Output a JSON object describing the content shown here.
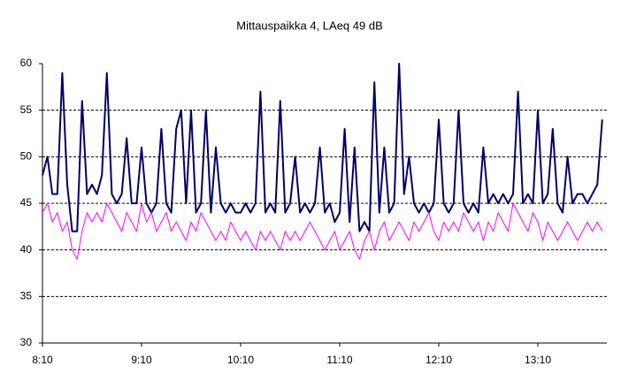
{
  "chart_data": {
    "type": "line",
    "title": "Mittauspaikka 4, LAeq 49 dB",
    "categories": [
      "8:10",
      null,
      null,
      null,
      null,
      null,
      null,
      null,
      null,
      null,
      null,
      null,
      null,
      null,
      null,
      null,
      null,
      null,
      null,
      null,
      "9:10",
      null,
      null,
      null,
      null,
      null,
      null,
      null,
      null,
      null,
      null,
      null,
      null,
      null,
      null,
      null,
      null,
      null,
      null,
      null,
      "10:10",
      null,
      null,
      null,
      null,
      null,
      null,
      null,
      null,
      null,
      null,
      null,
      null,
      null,
      null,
      null,
      null,
      null,
      null,
      null,
      "11:10",
      null,
      null,
      null,
      null,
      null,
      null,
      null,
      null,
      null,
      null,
      null,
      null,
      null,
      null,
      null,
      null,
      null,
      null,
      null,
      "12:10",
      null,
      null,
      null,
      null,
      null,
      null,
      null,
      null,
      null,
      null,
      null,
      null,
      null,
      null,
      null,
      null,
      null,
      null,
      null,
      "13:10",
      null,
      null,
      null,
      null,
      null,
      null,
      null,
      null,
      null,
      null,
      null,
      null,
      null
    ],
    "series": [
      {
        "color": "#000066",
        "width": 2,
        "values": [
          48,
          50,
          46,
          46,
          59,
          47,
          42,
          42,
          56,
          46,
          47,
          46,
          48,
          59,
          46,
          45,
          46,
          52,
          45,
          45,
          51,
          45,
          44,
          45,
          53,
          45,
          44,
          53,
          55,
          45,
          55,
          44,
          45,
          55,
          44,
          51,
          45,
          44,
          45,
          44,
          44,
          45,
          44,
          45,
          57,
          44,
          45,
          44,
          56,
          44,
          45,
          50,
          44,
          45,
          44,
          45,
          51,
          44,
          45,
          43,
          44,
          53,
          43,
          51,
          42,
          43,
          42,
          58,
          44,
          51,
          44,
          45,
          60,
          46,
          50,
          45,
          44,
          45,
          44,
          45,
          54,
          45,
          44,
          45,
          55,
          45,
          44,
          45,
          44,
          51,
          45,
          46,
          45,
          46,
          45,
          46,
          57,
          45,
          46,
          45,
          55,
          45,
          46,
          53,
          45,
          44,
          50,
          45,
          46,
          46,
          45,
          46,
          47,
          54
        ]
      },
      {
        "color": "#ff00ff",
        "width": 1,
        "values": [
          44,
          45,
          43,
          44,
          42,
          43,
          40,
          39,
          42,
          44,
          43,
          44,
          43,
          45,
          44,
          43,
          42,
          44,
          43,
          42,
          45,
          43,
          44,
          42,
          43,
          44,
          42,
          43,
          42,
          41,
          43,
          42,
          44,
          43,
          42,
          41,
          42,
          41,
          43,
          42,
          41,
          42,
          41,
          40,
          42,
          41,
          42,
          41,
          40,
          42,
          41,
          42,
          41,
          42,
          43,
          42,
          41,
          40,
          41,
          42,
          40,
          41,
          42,
          40,
          39,
          41,
          42,
          40,
          42,
          43,
          41,
          42,
          43,
          42,
          41,
          43,
          42,
          43,
          44,
          42,
          41,
          43,
          42,
          43,
          42,
          44,
          43,
          42,
          43,
          41,
          43,
          42,
          44,
          43,
          42,
          45,
          44,
          43,
          42,
          44,
          43,
          41,
          43,
          42,
          41,
          42,
          43,
          42,
          41,
          42,
          43,
          42,
          43,
          42
        ]
      }
    ],
    "ylim": [
      30,
      60
    ],
    "yticks": [
      30,
      35,
      40,
      45,
      50,
      55,
      60
    ],
    "grid": true
  }
}
